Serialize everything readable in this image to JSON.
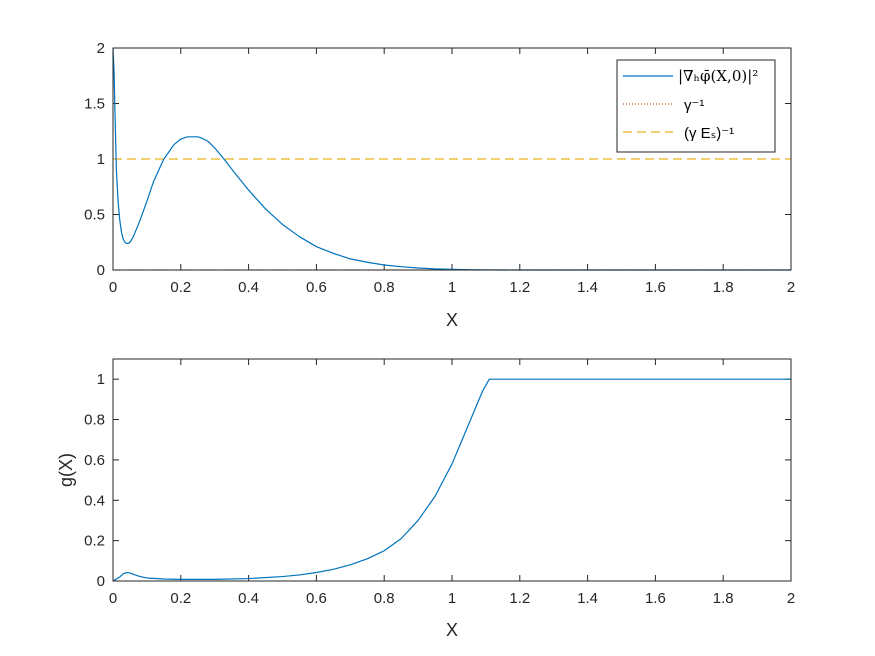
{
  "colors": {
    "line": "#0072BD",
    "dotted": "#D95319",
    "dashed": "#EDB120",
    "axis": "#262626"
  },
  "chart_data": [
    {
      "type": "line",
      "title": "",
      "xlabel": "X",
      "ylabel": "",
      "xlim": [
        0,
        2
      ],
      "ylim": [
        0,
        2
      ],
      "xticks": [
        "0",
        "0.2",
        "0.4",
        "0.6",
        "0.8",
        "1",
        "1.2",
        "1.4",
        "1.6",
        "1.8",
        "2"
      ],
      "yticks": [
        "0",
        "0.5",
        "1",
        "1.5",
        "2"
      ],
      "grid": false,
      "legend_position": "top-right",
      "series": [
        {
          "name": "|∇ₕφ̄(X,0)|²",
          "style": "solid",
          "x": [
            0.0,
            0.003,
            0.006,
            0.01,
            0.015,
            0.02,
            0.025,
            0.03,
            0.035,
            0.04,
            0.045,
            0.05,
            0.06,
            0.08,
            0.1,
            0.12,
            0.15,
            0.18,
            0.2,
            0.22,
            0.24,
            0.25,
            0.26,
            0.28,
            0.3,
            0.33,
            0.36,
            0.4,
            0.45,
            0.5,
            0.55,
            0.6,
            0.65,
            0.7,
            0.75,
            0.8,
            0.85,
            0.9,
            0.95,
            1.0,
            1.05,
            1.1,
            1.2,
            1.3,
            1.4,
            1.5,
            1.6,
            1.7,
            1.8,
            1.9,
            2.0
          ],
          "y": [
            2.0,
            1.8,
            1.4,
            0.9,
            0.62,
            0.45,
            0.34,
            0.28,
            0.25,
            0.24,
            0.24,
            0.25,
            0.3,
            0.45,
            0.62,
            0.8,
            1.0,
            1.13,
            1.18,
            1.2,
            1.2,
            1.2,
            1.19,
            1.16,
            1.1,
            0.99,
            0.87,
            0.72,
            0.55,
            0.41,
            0.3,
            0.21,
            0.15,
            0.1,
            0.07,
            0.045,
            0.03,
            0.018,
            0.01,
            0.006,
            0.003,
            0.001,
            0.0,
            0.0,
            0.0,
            0.0,
            0.0,
            0.0,
            0.0,
            0.0,
            0.0
          ]
        },
        {
          "name": "γ⁻¹",
          "style": "dotted",
          "x": [
            0,
            2
          ],
          "y": [
            0,
            0
          ]
        },
        {
          "name": "(γ Eₛ)⁻¹",
          "style": "dashed",
          "x": [
            0,
            2
          ],
          "y": [
            1,
            1
          ]
        }
      ]
    },
    {
      "type": "line",
      "title": "",
      "xlabel": "X",
      "ylabel": "g(X)",
      "xlim": [
        0,
        2
      ],
      "ylim": [
        0,
        1.1
      ],
      "xticks": [
        "0",
        "0.2",
        "0.4",
        "0.6",
        "0.8",
        "1",
        "1.2",
        "1.4",
        "1.6",
        "1.8",
        "2"
      ],
      "yticks": [
        "0",
        "0.2",
        "0.4",
        "0.6",
        "0.8",
        "1"
      ],
      "grid": false,
      "series": [
        {
          "x": [
            0.0,
            0.01,
            0.02,
            0.03,
            0.04,
            0.05,
            0.06,
            0.08,
            0.1,
            0.15,
            0.2,
            0.3,
            0.4,
            0.5,
            0.55,
            0.6,
            0.65,
            0.7,
            0.75,
            0.8,
            0.85,
            0.9,
            0.95,
            1.0,
            1.03,
            1.06,
            1.09,
            1.11,
            1.2,
            1.4,
            1.6,
            1.8,
            2.0
          ],
          "y": [
            0.0,
            0.01,
            0.02,
            0.035,
            0.042,
            0.04,
            0.033,
            0.022,
            0.015,
            0.01,
            0.008,
            0.008,
            0.012,
            0.022,
            0.03,
            0.042,
            0.058,
            0.08,
            0.11,
            0.15,
            0.21,
            0.3,
            0.42,
            0.58,
            0.7,
            0.82,
            0.94,
            1.0,
            1.0,
            1.0,
            1.0,
            1.0,
            1.0
          ]
        }
      ]
    }
  ]
}
